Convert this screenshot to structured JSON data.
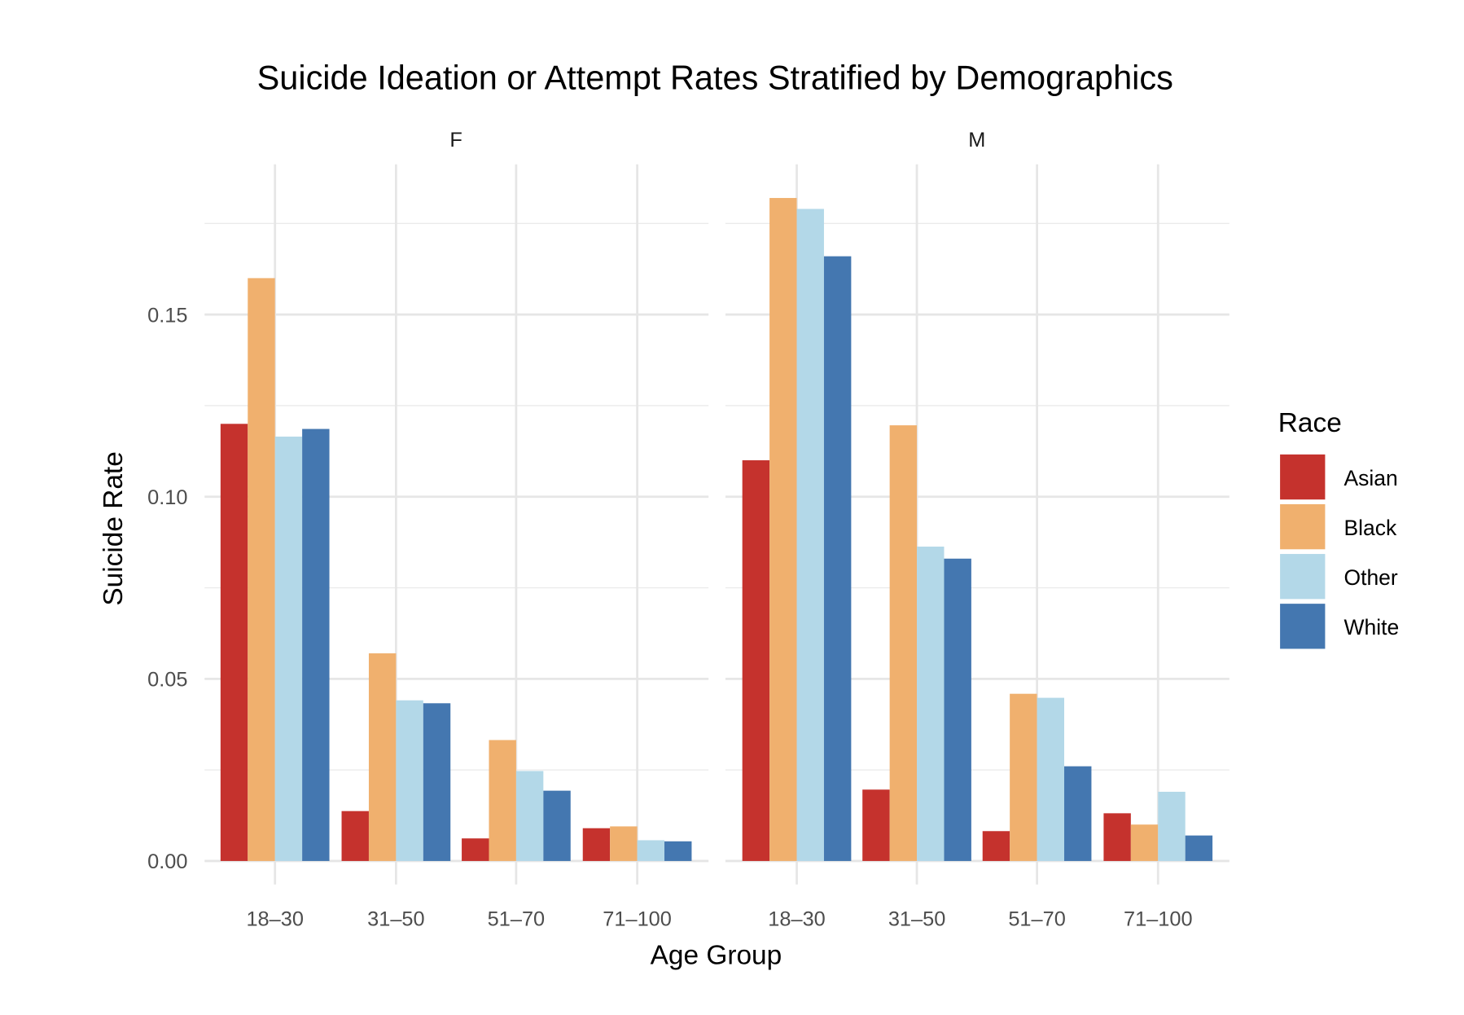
{
  "chart_data": {
    "type": "bar",
    "title": "Suicide Ideation or Attempt Rates Stratified by Demographics",
    "xlabel": "Age Group",
    "ylabel": "Suicide Rate",
    "ylim": [
      0,
      0.19
    ],
    "yticks": [
      "0.00",
      "0.05",
      "0.10",
      "0.15"
    ],
    "ytick_values": [
      0,
      0.05,
      0.1,
      0.15
    ],
    "grid": true,
    "legend": {
      "title": "Race",
      "position": "right"
    },
    "categories": [
      "18–30",
      "31–50",
      "51–70",
      "71–100"
    ],
    "series_names": [
      "Asian",
      "Black",
      "Other",
      "White"
    ],
    "colors": {
      "Asian": "#C5322D",
      "Black": "#F0B06E",
      "Other": "#B3D8E8",
      "White": "#4477B0"
    },
    "facets": [
      {
        "label": "F",
        "series": [
          {
            "name": "Asian",
            "values": [
              0.12,
              0.0137,
              0.0062,
              0.009
            ]
          },
          {
            "name": "Black",
            "values": [
              0.16,
              0.057,
              0.0332,
              0.0095
            ]
          },
          {
            "name": "Other",
            "values": [
              0.1165,
              0.0441,
              0.0247,
              0.0057
            ]
          },
          {
            "name": "White",
            "values": [
              0.1186,
              0.0433,
              0.0193,
              0.0054
            ]
          }
        ]
      },
      {
        "label": "M",
        "series": [
          {
            "name": "Asian",
            "values": [
              0.11,
              0.0196,
              0.0082,
              0.0131
            ]
          },
          {
            "name": "Black",
            "values": [
              0.182,
              0.1196,
              0.0459,
              0.01
            ]
          },
          {
            "name": "Other",
            "values": [
              0.179,
              0.0863,
              0.0448,
              0.019
            ]
          },
          {
            "name": "White",
            "values": [
              0.166,
              0.083,
              0.026,
              0.007
            ]
          }
        ]
      }
    ]
  }
}
